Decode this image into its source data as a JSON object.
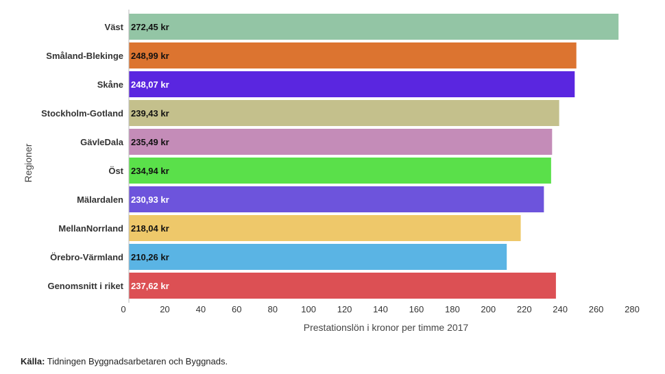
{
  "chart_data": {
    "type": "bar",
    "orientation": "horizontal",
    "categories": [
      "Väst",
      "Småland-Blekinge",
      "Skåne",
      "Stockholm-Gotland",
      "GävleDala",
      "Öst",
      "Mälardalen",
      "MellanNorrland",
      "Örebro-Värmland",
      "Genomsnitt i riket"
    ],
    "values": [
      272.45,
      248.99,
      248.07,
      239.43,
      235.49,
      234.94,
      230.93,
      218.04,
      210.26,
      237.62
    ],
    "data_labels": [
      "272,45 kr",
      "248,99 kr",
      "248,07 kr",
      "239,43 kr",
      "235,49 kr",
      "234,94 kr",
      "230,93 kr",
      "218,04 kr",
      "210,26 kr",
      "237,62 kr"
    ],
    "colors": [
      "#93c5a5",
      "#dc7430",
      "#5a26e0",
      "#c4c08c",
      "#c48cb8",
      "#5ae04a",
      "#6d54dc",
      "#eec86a",
      "#5ab4e4",
      "#dc5054"
    ],
    "label_colors": [
      "#111111",
      "#111111",
      "#ffffff",
      "#111111",
      "#111111",
      "#111111",
      "#ffffff",
      "#111111",
      "#111111",
      "#ffffff"
    ],
    "xlabel": "Prestationslön i kronor per timme 2017",
    "ylabel": "Regioner",
    "xlim": [
      0,
      280
    ],
    "xticks": [
      0,
      20,
      40,
      60,
      80,
      100,
      120,
      140,
      160,
      180,
      200,
      220,
      240,
      260,
      280
    ],
    "grid": false
  },
  "source": {
    "label": "Källa:",
    "text": "Tidningen Byggnadsarbetaren och Byggnads."
  }
}
